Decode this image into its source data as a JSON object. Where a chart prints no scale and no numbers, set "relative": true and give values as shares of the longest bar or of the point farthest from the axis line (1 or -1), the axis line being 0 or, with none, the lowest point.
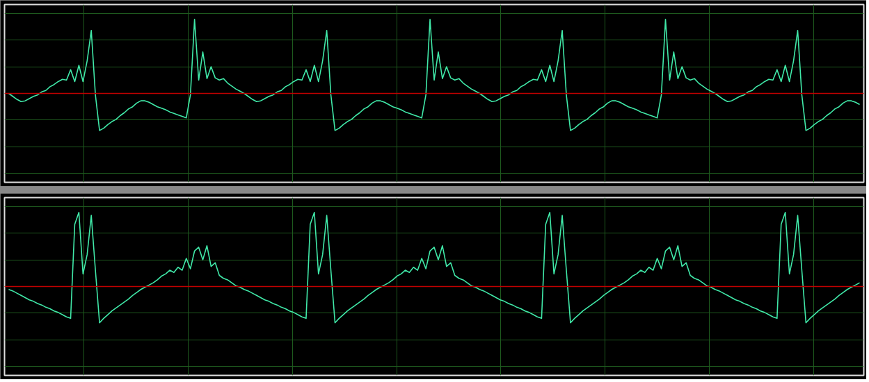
{
  "chart_data": [
    {
      "type": "line",
      "relative": true,
      "grid": true,
      "categories": [
        null,
        null,
        null,
        null,
        null,
        null,
        null,
        null,
        null,
        null,
        null,
        null,
        null,
        null,
        null,
        null,
        null,
        null,
        null,
        null,
        null,
        null,
        null,
        null,
        null,
        null,
        null,
        null,
        null,
        null,
        null,
        null,
        null,
        null,
        null,
        null,
        null,
        null,
        null,
        null,
        null,
        null,
        null,
        null,
        null,
        null,
        null,
        null,
        null,
        null,
        null,
        null,
        null,
        null,
        null,
        null,
        null,
        null,
        null,
        null,
        null,
        null,
        null,
        null,
        null,
        null,
        null,
        null,
        null,
        null,
        null,
        null,
        null,
        null,
        null,
        null,
        null,
        null,
        null,
        null,
        null,
        null,
        null,
        null,
        null,
        null,
        null,
        null,
        null,
        null,
        null,
        null,
        null,
        null,
        null,
        null,
        null,
        null,
        null,
        null,
        null,
        null,
        null,
        null,
        null,
        null,
        null,
        null,
        null,
        null,
        null,
        null,
        null,
        null,
        null,
        null,
        null,
        null,
        null,
        null,
        null,
        null,
        null,
        null,
        null,
        null,
        null,
        null,
        null,
        null,
        null,
        null,
        null,
        null,
        null,
        null,
        null,
        null,
        null,
        null,
        null,
        null,
        null,
        null,
        null,
        null,
        null,
        null,
        null,
        null,
        null,
        null,
        null,
        null,
        null,
        null,
        null,
        null,
        null,
        null,
        null,
        null,
        null,
        null,
        null,
        null,
        null,
        null,
        null,
        null,
        null,
        null,
        null,
        null,
        null,
        null,
        null,
        null,
        null,
        null,
        null,
        null,
        null,
        null,
        null,
        null,
        null,
        null,
        null,
        null,
        null,
        null,
        null,
        null,
        null,
        null,
        null,
        null,
        null,
        null,
        null,
        null,
        null,
        null,
        null,
        null,
        null
      ],
      "series": [
        {
          "color": "#40e8a8",
          "values": [
            0,
            -0.04,
            -0.08,
            -0.11,
            -0.1,
            -0.07,
            -0.04,
            -0.02,
            0.02,
            0.04,
            0.09,
            0.12,
            0.16,
            0.19,
            0.18,
            0.32,
            0.16,
            0.38,
            0.16,
            0.44,
            0.85,
            -0.02,
            -0.5,
            -0.47,
            -0.42,
            -0.38,
            -0.35,
            -0.3,
            -0.26,
            -0.21,
            -0.18,
            -0.13,
            -0.1,
            -0.1,
            -0.12,
            -0.15,
            -0.18,
            -0.2,
            -0.22,
            -0.25,
            -0.27,
            -0.29,
            -0.31,
            -0.33,
            -0.02,
            1,
            0.18,
            0.56,
            0.2,
            0.36,
            0.21,
            0.18,
            0.2,
            0.14,
            0.1,
            0.06,
            0.03,
            0,
            -0.04,
            -0.08,
            -0.11,
            -0.1,
            -0.07,
            -0.04,
            -0.02,
            0.02,
            0.04,
            0.09,
            0.12,
            0.16,
            0.19,
            0.18,
            0.32,
            0.16,
            0.38,
            0.16,
            0.44,
            0.85,
            -0.02,
            -0.5,
            -0.47,
            -0.42,
            -0.38,
            -0.35,
            -0.3,
            -0.26,
            -0.21,
            -0.18,
            -0.13,
            -0.1,
            -0.1,
            -0.12,
            -0.15,
            -0.18,
            -0.2,
            -0.22,
            -0.25,
            -0.27,
            -0.29,
            -0.31,
            -0.33,
            -0.02,
            1,
            0.18,
            0.56,
            0.2,
            0.36,
            0.21,
            0.18,
            0.2,
            0.14,
            0.1,
            0.06,
            0.03,
            0,
            -0.04,
            -0.08,
            -0.11,
            -0.1,
            -0.07,
            -0.04,
            -0.02,
            0.02,
            0.04,
            0.09,
            0.12,
            0.16,
            0.19,
            0.18,
            0.32,
            0.16,
            0.38,
            0.16,
            0.44,
            0.85,
            -0.02,
            -0.5,
            -0.47,
            -0.42,
            -0.38,
            -0.35,
            -0.3,
            -0.26,
            -0.21,
            -0.18,
            -0.13,
            -0.1,
            -0.1,
            -0.12,
            -0.15,
            -0.18,
            -0.2,
            -0.22,
            -0.25,
            -0.27,
            -0.29,
            -0.31,
            -0.33,
            -0.02,
            1,
            0.18,
            0.56,
            0.2,
            0.36,
            0.21,
            0.18,
            0.2,
            0.14,
            0.1,
            0.06,
            0.03,
            0,
            -0.04,
            -0.08,
            -0.11,
            -0.1,
            -0.07,
            -0.04,
            -0.02,
            0.02,
            0.04,
            0.09,
            0.12,
            0.16,
            0.19,
            0.18,
            0.32,
            0.16,
            0.38,
            0.16,
            0.44,
            0.85,
            -0.02,
            -0.5,
            -0.47,
            -0.42,
            -0.38,
            -0.35,
            -0.3,
            -0.26,
            -0.21,
            -0.18,
            -0.13,
            -0.1,
            -0.1,
            -0.12,
            -0.15
          ]
        }
      ],
      "ref_lines": [
        {
          "axis": "y",
          "value": 0,
          "color": "#c00000"
        }
      ]
    },
    {
      "type": "line",
      "relative": true,
      "grid": true,
      "categories": [
        null,
        null,
        null,
        null,
        null,
        null,
        null,
        null,
        null,
        null,
        null,
        null,
        null,
        null,
        null,
        null,
        null,
        null,
        null,
        null,
        null,
        null,
        null,
        null,
        null,
        null,
        null,
        null,
        null,
        null,
        null,
        null,
        null,
        null,
        null,
        null,
        null,
        null,
        null,
        null,
        null,
        null,
        null,
        null,
        null,
        null,
        null,
        null,
        null,
        null,
        null,
        null,
        null,
        null,
        null,
        null,
        null,
        null,
        null,
        null,
        null,
        null,
        null,
        null,
        null,
        null,
        null,
        null,
        null,
        null,
        null,
        null,
        null,
        null,
        null,
        null,
        null,
        null,
        null,
        null,
        null,
        null,
        null,
        null,
        null,
        null,
        null,
        null,
        null,
        null,
        null,
        null,
        null,
        null,
        null,
        null,
        null,
        null,
        null,
        null,
        null,
        null,
        null,
        null,
        null,
        null,
        null,
        null,
        null,
        null,
        null,
        null,
        null,
        null,
        null,
        null,
        null,
        null,
        null,
        null,
        null,
        null,
        null,
        null,
        null,
        null,
        null,
        null,
        null,
        null,
        null,
        null,
        null,
        null,
        null,
        null,
        null,
        null,
        null,
        null,
        null,
        null,
        null,
        null,
        null,
        null,
        null,
        null,
        null,
        null,
        null,
        null,
        null,
        null,
        null,
        null,
        null,
        null,
        null,
        null,
        null,
        null,
        null,
        null,
        null,
        null,
        null,
        null,
        null,
        null,
        null,
        null,
        null,
        null,
        null,
        null,
        null,
        null,
        null,
        null,
        null,
        null,
        null,
        null,
        null,
        null,
        null,
        null,
        null,
        null,
        null,
        null,
        null,
        null,
        null,
        null,
        null,
        null,
        null,
        null,
        null,
        null,
        null,
        null,
        null,
        null,
        null
      ],
      "series": [
        {
          "color": "#40e8a8",
          "values": [
            -0.04,
            -0.06,
            -0.09,
            -0.12,
            -0.15,
            -0.18,
            -0.2,
            -0.23,
            -0.25,
            -0.28,
            -0.3,
            -0.33,
            -0.35,
            -0.38,
            -0.41,
            -0.43,
            0.84,
            1,
            0.17,
            0.43,
            0.96,
            0.22,
            -0.49,
            -0.43,
            -0.38,
            -0.33,
            -0.29,
            -0.25,
            -0.21,
            -0.17,
            -0.12,
            -0.08,
            -0.04,
            -0.01,
            0.02,
            0.05,
            0.09,
            0.14,
            0.17,
            0.22,
            0.19,
            0.26,
            0.22,
            0.38,
            0.24,
            0.48,
            0.53,
            0.36,
            0.55,
            0.27,
            0.32,
            0.15,
            0.11,
            0.09,
            0.05,
            0.01,
            -0.01,
            -0.04,
            -0.06,
            -0.09,
            -0.12,
            -0.15,
            -0.18,
            -0.2,
            -0.23,
            -0.25,
            -0.28,
            -0.3,
            -0.33,
            -0.35,
            -0.38,
            -0.41,
            -0.43,
            0.84,
            1,
            0.17,
            0.43,
            0.96,
            0.22,
            -0.49,
            -0.43,
            -0.38,
            -0.33,
            -0.29,
            -0.25,
            -0.21,
            -0.17,
            -0.12,
            -0.08,
            -0.04,
            -0.01,
            0.02,
            0.05,
            0.09,
            0.14,
            0.17,
            0.22,
            0.19,
            0.26,
            0.22,
            0.38,
            0.24,
            0.48,
            0.53,
            0.36,
            0.55,
            0.27,
            0.32,
            0.15,
            0.11,
            0.09,
            0.05,
            0.01,
            -0.01,
            -0.04,
            -0.06,
            -0.09,
            -0.12,
            -0.15,
            -0.18,
            -0.2,
            -0.23,
            -0.25,
            -0.28,
            -0.3,
            -0.33,
            -0.35,
            -0.38,
            -0.41,
            -0.43,
            0.84,
            1,
            0.17,
            0.43,
            0.96,
            0.22,
            -0.49,
            -0.43,
            -0.38,
            -0.33,
            -0.29,
            -0.25,
            -0.21,
            -0.17,
            -0.12,
            -0.08,
            -0.04,
            -0.01,
            0.02,
            0.05,
            0.09,
            0.14,
            0.17,
            0.22,
            0.19,
            0.26,
            0.22,
            0.38,
            0.24,
            0.48,
            0.53,
            0.36,
            0.55,
            0.27,
            0.32,
            0.15,
            0.11,
            0.09,
            0.05,
            0.01,
            -0.01,
            -0.04,
            -0.06,
            -0.09,
            -0.12,
            -0.15,
            -0.18,
            -0.2,
            -0.23,
            -0.25,
            -0.28,
            -0.3,
            -0.33,
            -0.35,
            -0.38,
            -0.41,
            -0.43,
            0.84,
            1,
            0.17,
            0.43,
            0.96,
            0.22,
            -0.49,
            -0.43,
            -0.38,
            -0.33,
            -0.29,
            -0.25,
            -0.21,
            -0.17,
            -0.12,
            -0.08,
            -0.04,
            -0.01,
            0.02,
            0.05
          ]
        }
      ],
      "ref_lines": [
        {
          "axis": "y",
          "value": 0,
          "color": "#c00000"
        }
      ]
    }
  ]
}
